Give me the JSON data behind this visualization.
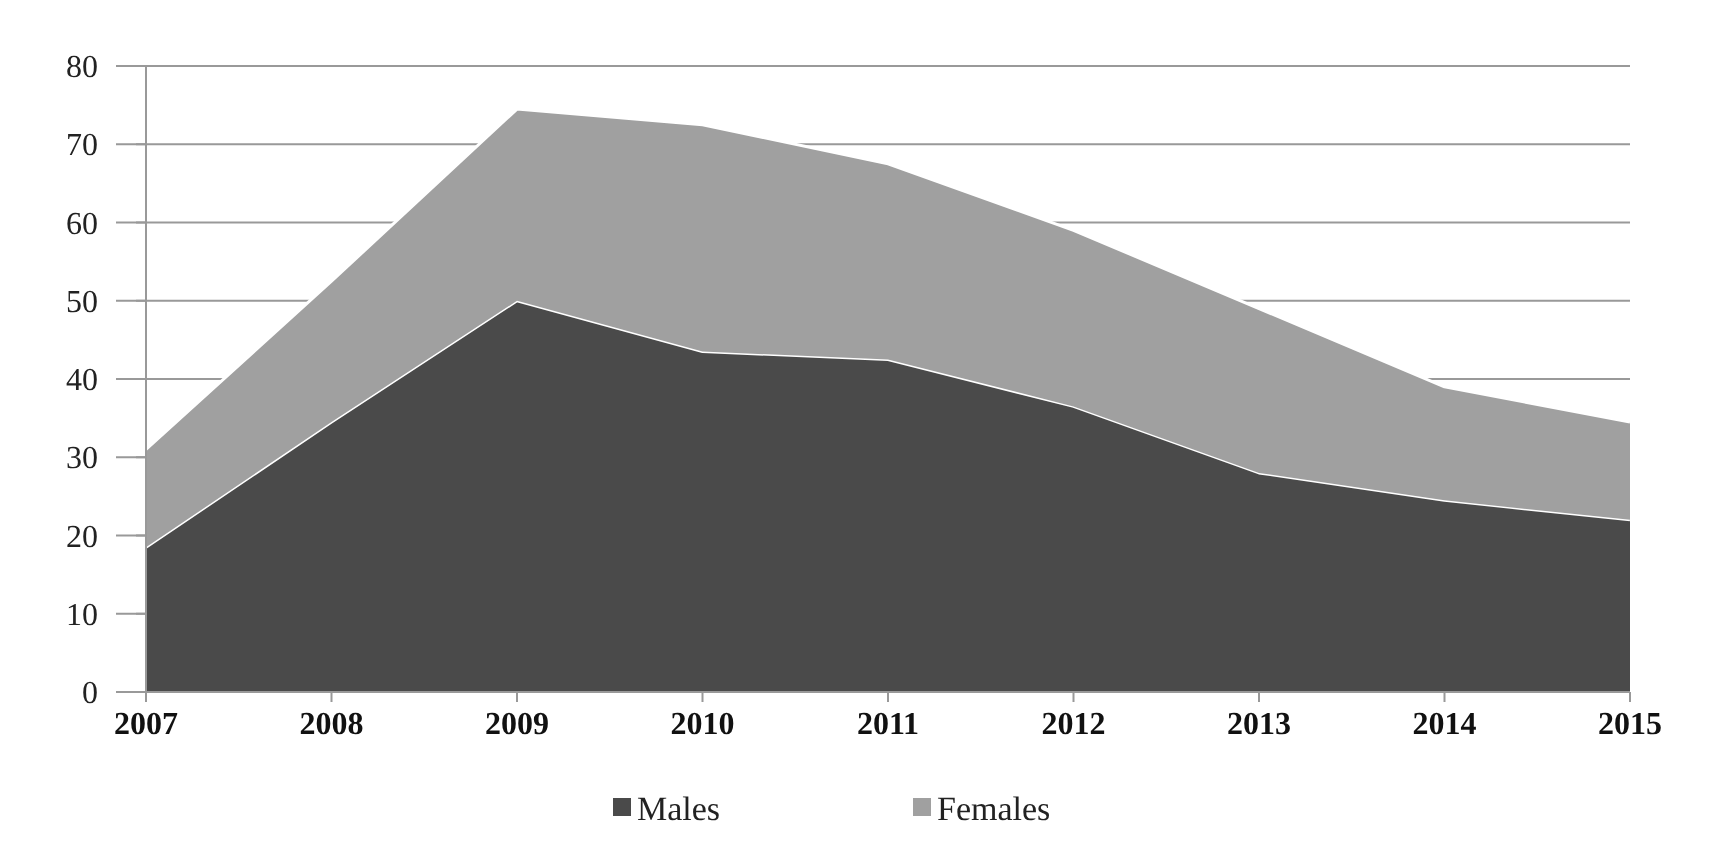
{
  "chart_data": {
    "type": "area",
    "stacked": true,
    "categories": [
      "2007",
      "2008",
      "2009",
      "2010",
      "2011",
      "2012",
      "2013",
      "2014",
      "2015"
    ],
    "series": [
      {
        "name": "Males",
        "color": "#4a4a4a",
        "values": [
          18.5,
          34.5,
          50,
          43.5,
          42.5,
          36.5,
          28,
          24.5,
          22
        ]
      },
      {
        "name": "Females",
        "color": "#a0a0a0",
        "values": [
          12.5,
          18,
          24.5,
          29,
          25,
          22.5,
          21,
          14.5,
          12.5
        ]
      }
    ],
    "ylim": [
      0,
      80
    ],
    "yticks": [
      0,
      10,
      20,
      30,
      40,
      50,
      60,
      70,
      80
    ],
    "grid": "y",
    "legend": "bottom"
  }
}
